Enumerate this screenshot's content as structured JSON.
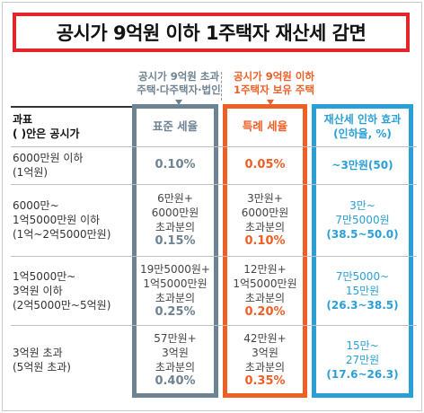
{
  "title": "공시가 9억원 이하 1주택자 재산세 감면",
  "groups": {
    "standard": {
      "line1": "공시가 9억원 초과",
      "line2": "주택·다주택자·법인"
    },
    "special": {
      "line1": "공시가 9억원 이하",
      "line2": "1주택자 보유 주택"
    }
  },
  "header": {
    "left_line1": "과표",
    "left_line2": "( )안은 공시가",
    "standard": "표준 세율",
    "special": "특례 세율",
    "effect_line1": "재산세 인하 효과",
    "effect_line2": "(인하율, %)"
  },
  "rows": [
    {
      "left": [
        "6000만원 이하",
        "(1억원)"
      ],
      "standard": [
        "0.10%"
      ],
      "special": [
        "0.05%"
      ],
      "effect": [
        "~3만원(50)"
      ]
    },
    {
      "left": [
        "6000만~",
        "1억5000만원 이하",
        "(1억~2억5000만원)"
      ],
      "standard": [
        "6만원+",
        "6000만원",
        "초과분의",
        "0.15%"
      ],
      "special": [
        "3만원+",
        "6000만원",
        "초과분의",
        "0.10%"
      ],
      "effect": [
        "3만~",
        "7만5000원",
        "(38.5~50.0)"
      ]
    },
    {
      "left": [
        "1억5000만~",
        "3억원 이하",
        "(2억5000만~5억원)"
      ],
      "standard": [
        "19만5000원+",
        "1억5000만원",
        "초과분의",
        "0.25%"
      ],
      "special": [
        "12만원+",
        "1억5000만원",
        "초과분의",
        "0.20%"
      ],
      "effect": [
        "7만5000~",
        "15만원",
        "(26.3~38.5)"
      ]
    },
    {
      "left": [
        "3억원 초과",
        "(5억원 초과)"
      ],
      "standard": [
        "57만원+",
        "3억원",
        "초과분의",
        "0.40%"
      ],
      "special": [
        "42만원+",
        "3억원",
        "초과분의",
        "0.35%"
      ],
      "effect": [
        "15만~",
        "27만원",
        "(17.6~26.3)"
      ]
    }
  ],
  "colors": {
    "title_border": "#e3262a",
    "standard": "#6e8391",
    "special": "#ee5f26",
    "effect": "#2a9fd6"
  }
}
